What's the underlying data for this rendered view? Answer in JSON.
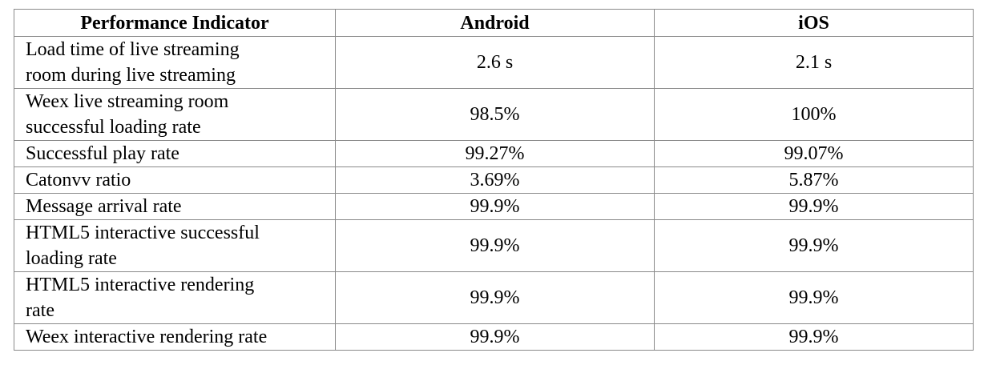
{
  "table": {
    "headers": [
      "Performance Indicator",
      "Android",
      "iOS"
    ],
    "rows": [
      {
        "indicator_lines": [
          "Load time of live streaming",
          "room during live streaming"
        ],
        "android": "2.6 s",
        "ios": "2.1 s"
      },
      {
        "indicator_lines": [
          "Weex live streaming room",
          "successful loading rate"
        ],
        "android": "98.5%",
        "ios": "100%"
      },
      {
        "indicator_lines": [
          "Successful play rate"
        ],
        "android": "99.27%",
        "ios": "99.07%"
      },
      {
        "indicator_lines": [
          "Catonvv ratio"
        ],
        "android": "3.69%",
        "ios": "5.87%"
      },
      {
        "indicator_lines": [
          "Message arrival rate"
        ],
        "android": "99.9%",
        "ios": "99.9%"
      },
      {
        "indicator_lines": [
          "HTML5 interactive successful",
          "loading rate"
        ],
        "android": "99.9%",
        "ios": "99.9%"
      },
      {
        "indicator_lines": [
          "HTML5 interactive rendering",
          "rate"
        ],
        "android": "99.9%",
        "ios": "99.9%"
      },
      {
        "indicator_lines": [
          "Weex interactive rendering rate"
        ],
        "android": "99.9%",
        "ios": "99.9%"
      }
    ]
  }
}
